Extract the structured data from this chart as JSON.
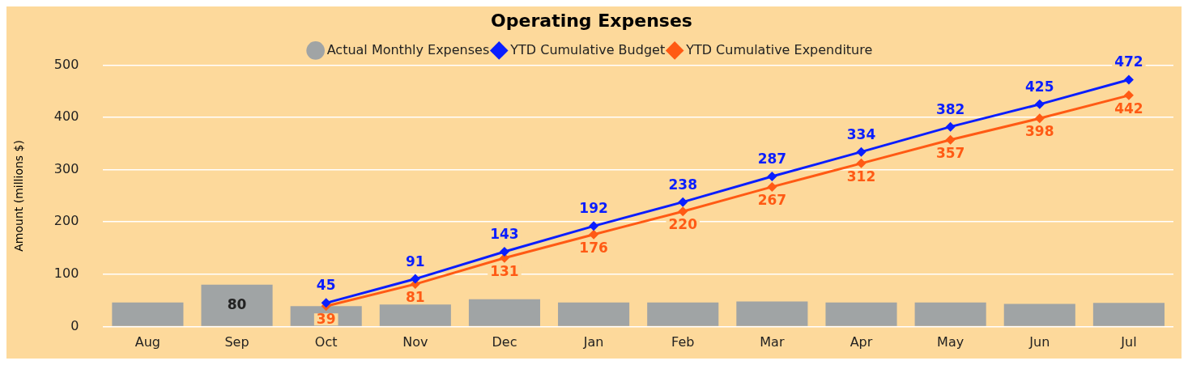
{
  "chart_data": {
    "type": "bar",
    "title": "Operating Expenses",
    "ylabel": "Amount (millions $)",
    "categories": [
      "Aug",
      "Sep",
      "Oct",
      "Nov",
      "Dec",
      "Jan",
      "Feb",
      "Mar",
      "Apr",
      "May",
      "Jun",
      "Jul"
    ],
    "series": [
      {
        "type": "bar",
        "name": "Actual Monthly Expenses",
        "color": "#a0a4a5",
        "values": [
          46,
          80,
          39,
          42,
          52,
          46,
          46,
          48,
          46,
          46,
          43,
          45
        ],
        "value_labels": [
          null,
          "80",
          null,
          null,
          null,
          null,
          null,
          null,
          null,
          null,
          null,
          null
        ]
      },
      {
        "type": "line",
        "name": "YTD Cumulative Budget",
        "color": "#0a1eff",
        "values": [
          null,
          null,
          45,
          91,
          143,
          192,
          238,
          287,
          334,
          382,
          425,
          472
        ],
        "value_labels": [
          null,
          null,
          "45",
          "91",
          "143",
          "192",
          "238",
          "287",
          "334",
          "382",
          "425",
          "472"
        ]
      },
      {
        "type": "line",
        "name": "YTD Cumulative Expenditure",
        "color": "#ff5a14",
        "values": [
          null,
          null,
          39,
          81,
          131,
          176,
          220,
          267,
          312,
          357,
          398,
          442
        ],
        "value_labels": [
          null,
          null,
          "39",
          "81",
          "131",
          "176",
          "220",
          "267",
          "312",
          "357",
          "398",
          "442"
        ]
      }
    ],
    "ylim": [
      0,
      500
    ],
    "yticks": [
      0,
      100,
      200,
      300,
      400,
      500
    ],
    "grid": "y",
    "legend": "top",
    "marker": "diamond",
    "line_style": "solid"
  }
}
